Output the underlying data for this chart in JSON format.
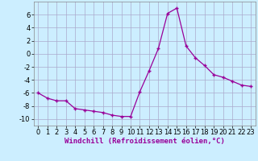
{
  "x": [
    0,
    1,
    2,
    3,
    4,
    5,
    6,
    7,
    8,
    9,
    10,
    11,
    12,
    13,
    14,
    15,
    16,
    17,
    18,
    19,
    20,
    21,
    22,
    23
  ],
  "y": [
    -6.0,
    -6.8,
    -7.2,
    -7.2,
    -8.4,
    -8.6,
    -8.8,
    -9.0,
    -9.4,
    -9.6,
    -9.6,
    -5.8,
    -2.6,
    0.8,
    6.2,
    7.0,
    1.2,
    -0.6,
    -1.8,
    -3.2,
    -3.6,
    -4.2,
    -4.8,
    -5.0
  ],
  "line_color": "#990099",
  "marker": "+",
  "marker_size": 3,
  "bg_color": "#cceeff",
  "grid_color": "#aaaacc",
  "xlabel": "Windchill (Refroidissement éolien,°C)",
  "xlim": [
    -0.5,
    23.5
  ],
  "ylim": [
    -11,
    8
  ],
  "yticks": [
    -10,
    -8,
    -6,
    -4,
    -2,
    0,
    2,
    4,
    6
  ],
  "xticks": [
    0,
    1,
    2,
    3,
    4,
    5,
    6,
    7,
    8,
    9,
    10,
    11,
    12,
    13,
    14,
    15,
    16,
    17,
    18,
    19,
    20,
    21,
    22,
    23
  ],
  "title_color": "#990099",
  "axis_label_fontsize": 6.5,
  "tick_fontsize": 6
}
